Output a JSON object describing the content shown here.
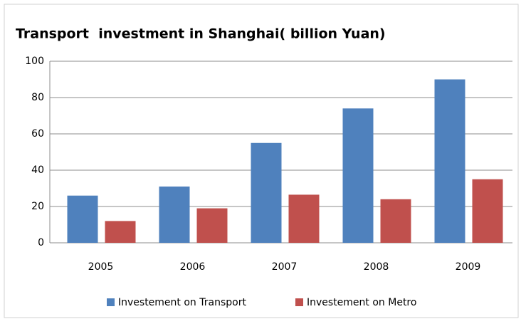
{
  "chart_data": {
    "type": "bar",
    "title": "Transport  investment in Shanghai( billion Yuan)",
    "categories": [
      "2005",
      "2006",
      "2007",
      "2008",
      "2009"
    ],
    "series": [
      {
        "name": "Investement on Transport",
        "color": "#4f81bd",
        "values": [
          26,
          31,
          55,
          74,
          90
        ]
      },
      {
        "name": "Investement on Metro",
        "color": "#c0504d",
        "values": [
          12,
          19,
          26.5,
          24,
          35
        ]
      }
    ],
    "ylim": [
      0,
      100
    ],
    "yticks": [
      0,
      20,
      40,
      60,
      80,
      100
    ],
    "grid": true,
    "legend": "bottom"
  }
}
